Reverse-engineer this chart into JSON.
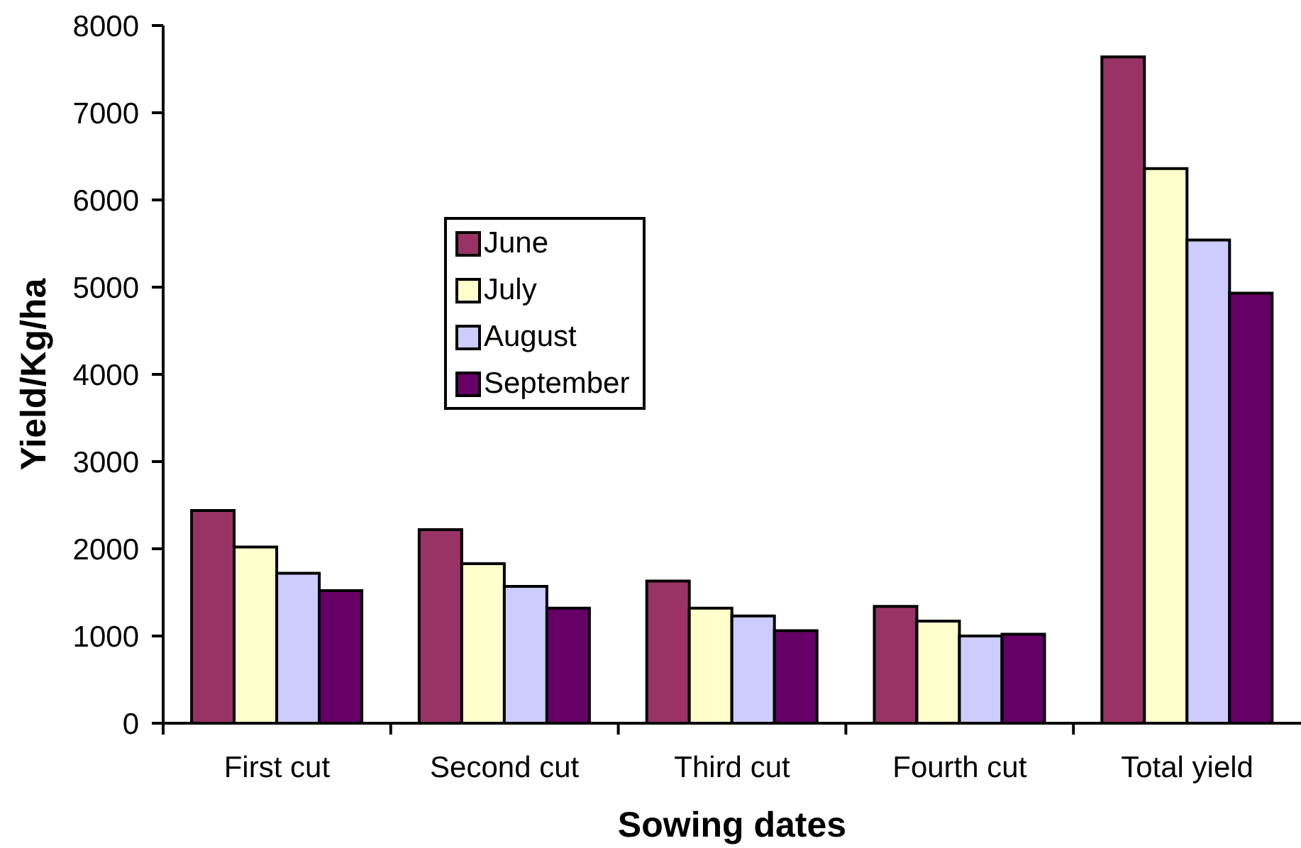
{
  "chart_data": {
    "type": "bar",
    "xlabel": "Sowing dates",
    "ylabel": "Yield/Kg/ha",
    "categories": [
      "First cut",
      "Second cut",
      "Third cut",
      "Fourth cut",
      "Total yield"
    ],
    "series": [
      {
        "name": "June",
        "color": "#993366",
        "values": [
          2440,
          2220,
          1630,
          1340,
          7640
        ]
      },
      {
        "name": "July",
        "color": "#ffffcc",
        "values": [
          2020,
          1830,
          1320,
          1170,
          6360
        ]
      },
      {
        "name": "August",
        "color": "#ccccff",
        "values": [
          1720,
          1570,
          1230,
          1000,
          5540
        ]
      },
      {
        "name": "September",
        "color": "#660066",
        "values": [
          1520,
          1320,
          1060,
          1020,
          4930
        ]
      }
    ],
    "ylim": [
      0,
      8000
    ],
    "yticks": [
      0,
      1000,
      2000,
      3000,
      4000,
      5000,
      6000,
      7000,
      8000
    ],
    "legend": "top left"
  }
}
